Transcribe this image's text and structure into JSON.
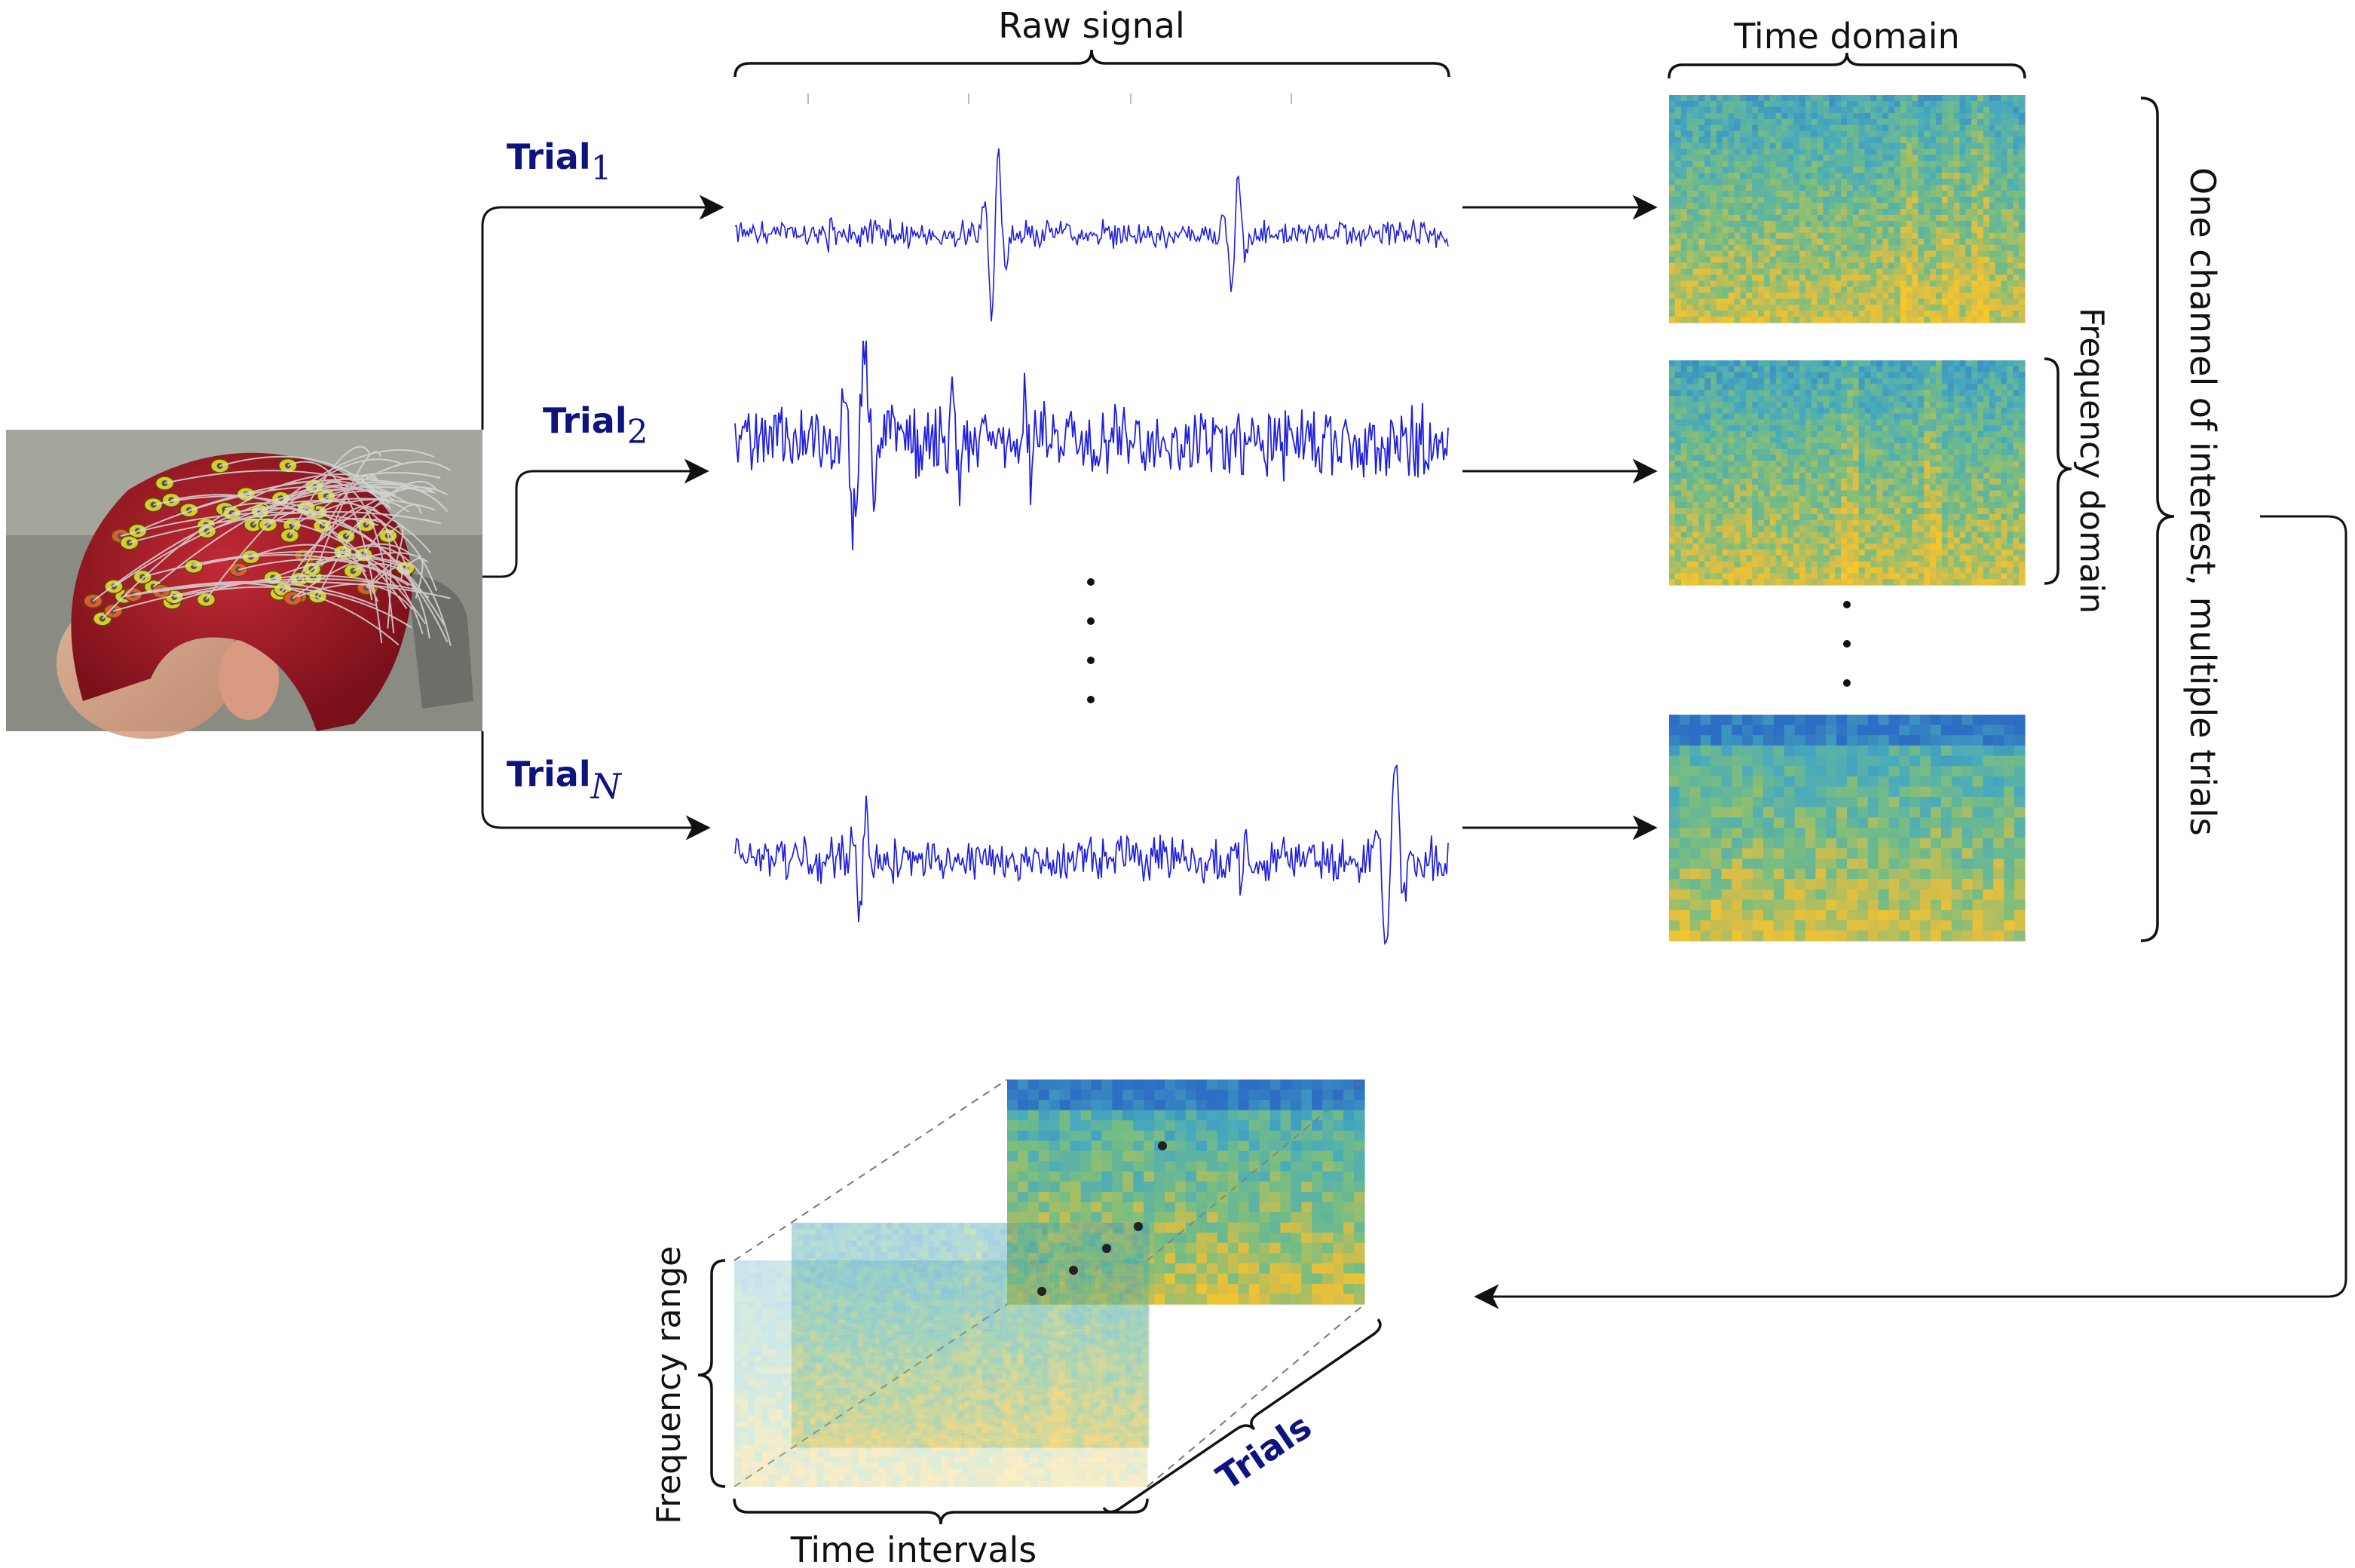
{
  "headers": {
    "raw_signal": "Raw signal",
    "time_domain": "Time domain"
  },
  "trials": [
    {
      "label": "Trial",
      "subscript": "1"
    },
    {
      "label": "Trial",
      "subscript": "2"
    },
    {
      "label": "Trial",
      "subscript": "N"
    }
  ],
  "labels": {
    "frequency_domain": "Frequency domain",
    "channel_note": "One channel of interest, multiple trials",
    "frequency_range": "Frequency range",
    "time_intervals": "Time intervals",
    "trials_axis": "Trials"
  },
  "colors": {
    "signal": "#1f1fe0",
    "trial_label": "#0d1480",
    "spectrogram_low": "#2d6fc4",
    "spectrogram_mid": "#4db8a0",
    "spectrogram_high": "#f2c230",
    "cap": "#a31824",
    "electrode_yellow": "#d8cc2a"
  },
  "icons": {
    "eeg_photo": "eeg-cap-photo"
  }
}
